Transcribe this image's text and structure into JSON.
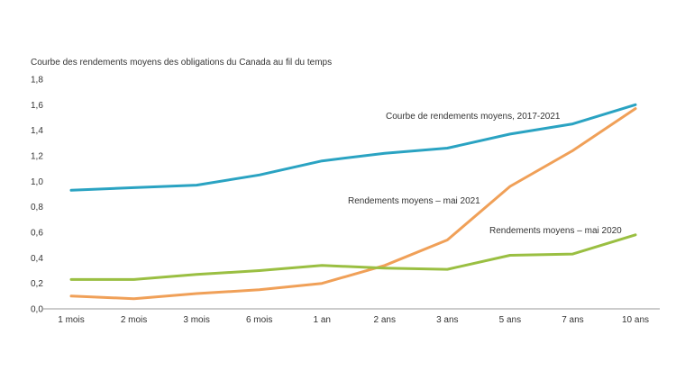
{
  "chart_data": {
    "type": "line",
    "title": "Courbe des rendements moyens des obligations du Canada au fil du temps",
    "xlabel": "",
    "ylabel": "",
    "ylim": [
      0,
      1.8
    ],
    "yticks": [
      0,
      0.2,
      0.4,
      0.6,
      0.8,
      1.0,
      1.2,
      1.4,
      1.6,
      1.8
    ],
    "ytick_labels": [
      "0,0",
      "0,2",
      "0,4",
      "0,6",
      "0,8",
      "1,0",
      "1,2",
      "1,4",
      "1,6",
      "1,8"
    ],
    "categories": [
      "1 mois",
      "2 mois",
      "3 mois",
      "6 mois",
      "1 an",
      "2 ans",
      "3 ans",
      "5 ans",
      "7 ans",
      "10 ans"
    ],
    "grid": false,
    "series": [
      {
        "name": "Courbe de rendements moyens, 2017-2021",
        "color": "#2aa3c2",
        "values": [
          0.93,
          0.95,
          0.97,
          1.05,
          1.16,
          1.22,
          1.26,
          1.37,
          1.45,
          1.6
        ]
      },
      {
        "name": "Rendements moyens – mai 2021",
        "color": "#f0a058",
        "values": [
          0.1,
          0.08,
          0.12,
          0.15,
          0.2,
          0.34,
          0.54,
          0.96,
          1.24,
          1.57
        ]
      },
      {
        "name": "Rendements moyens – mai 2020",
        "color": "#9abf42",
        "values": [
          0.23,
          0.23,
          0.27,
          0.3,
          0.34,
          0.32,
          0.31,
          0.42,
          0.43,
          0.58
        ]
      }
    ]
  }
}
